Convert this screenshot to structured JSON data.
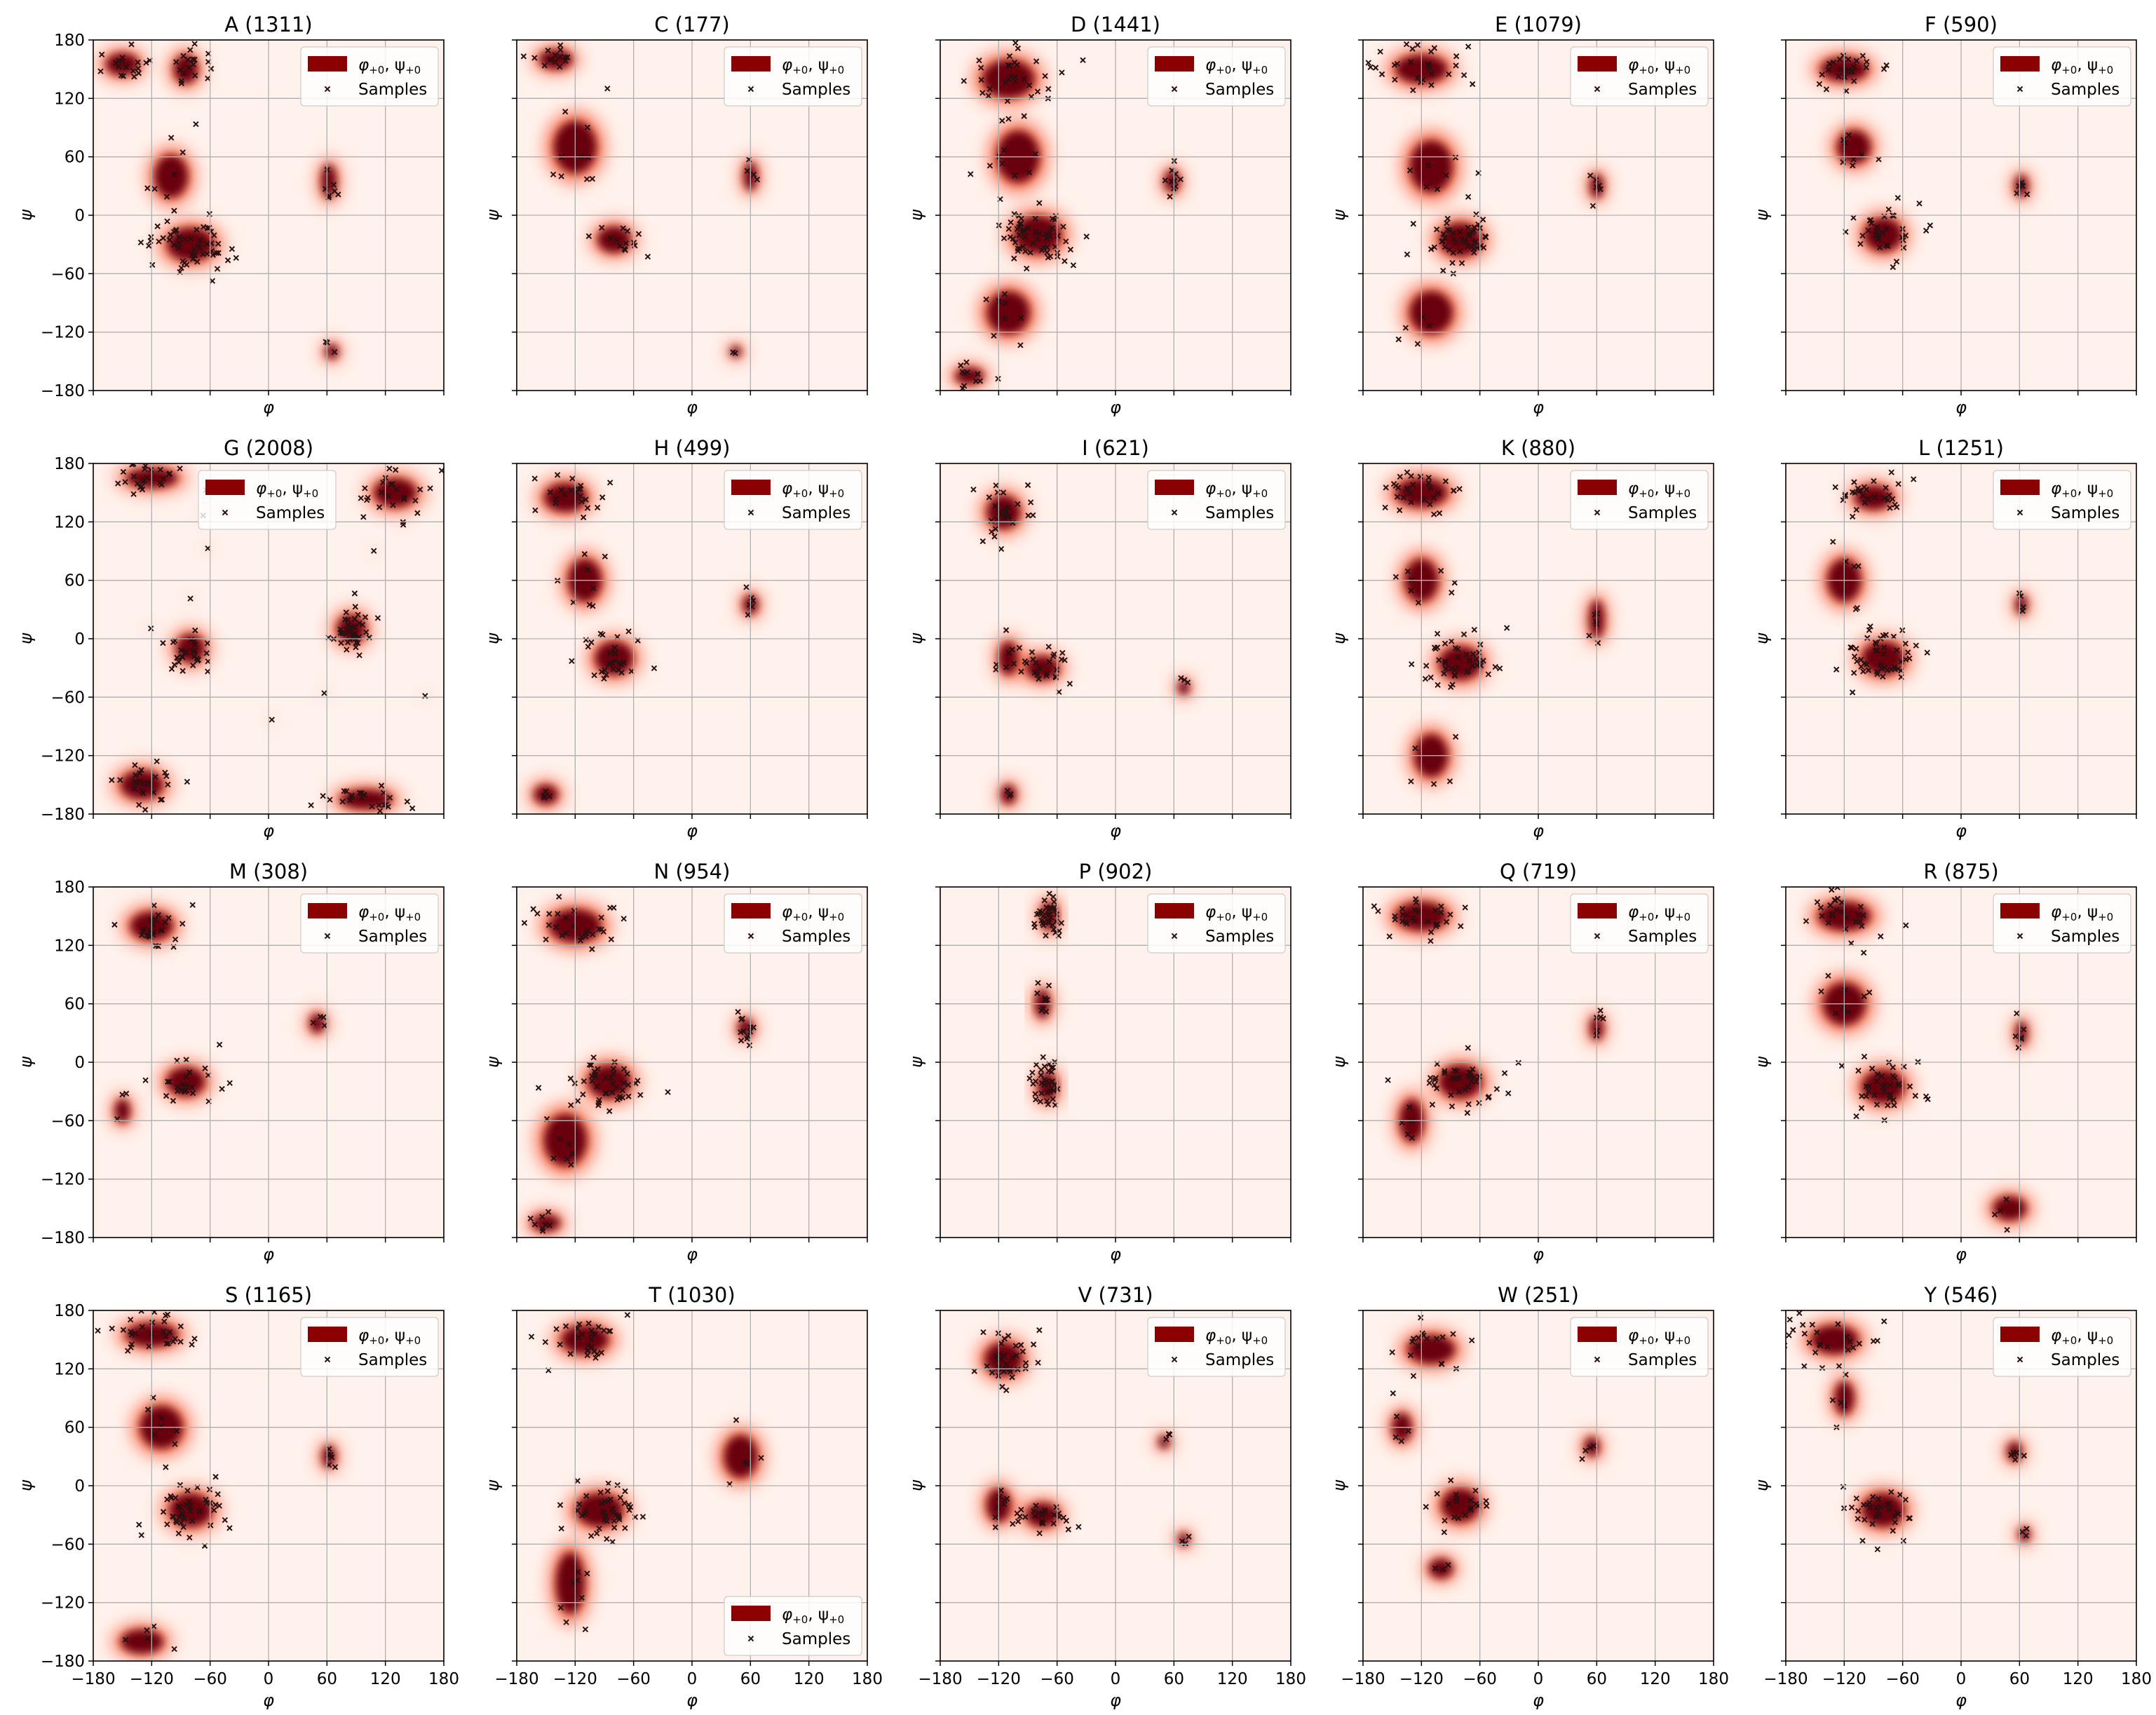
{
  "figure": {
    "legend_series_label": "φ+0, ψ+0",
    "legend_series_main": "φ",
    "legend_series_sub1": "+0",
    "legend_series_sep": ", ψ",
    "legend_series_sub2": "+0",
    "legend_samples_label": "Samples",
    "xlabel": "φ",
    "ylabel": "ψ",
    "colors": {
      "density_background": "#fff1ec",
      "density_mid": "#fb6a4a",
      "density_high": "#67000d",
      "legend_patch": "#8b0000",
      "sample_marker": "#2a1010",
      "grid": "#b0b0b0"
    }
  },
  "chart_data": [
    {
      "type": "heatmap",
      "title": "A (1311)",
      "xlim": [
        -180,
        180
      ],
      "ylim": [
        -180,
        180
      ],
      "ticks": [
        -180,
        -120,
        -60,
        0,
        60,
        120,
        180
      ],
      "grid": true,
      "legend": "upper right",
      "clusters": [
        {
          "x": -80,
          "y": -30,
          "w": 45,
          "h": 30,
          "n": 55
        },
        {
          "x": -150,
          "y": 155,
          "w": 30,
          "h": 18,
          "n": 18
        },
        {
          "x": -85,
          "y": 150,
          "w": 20,
          "h": 25,
          "n": 18
        },
        {
          "x": -100,
          "y": 40,
          "w": 30,
          "h": 40,
          "n": 8
        },
        {
          "x": 62,
          "y": 35,
          "w": 10,
          "h": 30,
          "n": 7
        },
        {
          "x": 65,
          "y": -140,
          "w": 8,
          "h": 10,
          "n": 3
        }
      ]
    },
    {
      "type": "heatmap",
      "title": "C (177)",
      "xlim": [
        -180,
        180
      ],
      "ylim": [
        -180,
        180
      ],
      "ticks": [
        -180,
        -120,
        -60,
        0,
        60,
        120,
        180
      ],
      "grid": true,
      "legend": "upper right",
      "clusters": [
        {
          "x": -80,
          "y": -25,
          "w": 30,
          "h": 22,
          "n": 14
        },
        {
          "x": -140,
          "y": 160,
          "w": 30,
          "h": 15,
          "n": 14
        },
        {
          "x": -120,
          "y": 70,
          "w": 40,
          "h": 50,
          "n": 10
        },
        {
          "x": 60,
          "y": 40,
          "w": 8,
          "h": 25,
          "n": 4
        },
        {
          "x": 45,
          "y": -140,
          "w": 6,
          "h": 6,
          "n": 2
        }
      ]
    },
    {
      "type": "heatmap",
      "title": "D (1441)",
      "xlim": [
        -180,
        180
      ],
      "ylim": [
        -180,
        180
      ],
      "ticks": [
        -180,
        -120,
        -60,
        0,
        60,
        120,
        180
      ],
      "grid": true,
      "legend": "upper right",
      "clusters": [
        {
          "x": -80,
          "y": -20,
          "w": 45,
          "h": 35,
          "n": 60
        },
        {
          "x": -110,
          "y": 140,
          "w": 50,
          "h": 35,
          "n": 30
        },
        {
          "x": -100,
          "y": 60,
          "w": 40,
          "h": 50,
          "n": 12
        },
        {
          "x": 58,
          "y": 35,
          "w": 10,
          "h": 18,
          "n": 10
        },
        {
          "x": -150,
          "y": -165,
          "w": 25,
          "h": 12,
          "n": 10
        },
        {
          "x": -110,
          "y": -100,
          "w": 40,
          "h": 40,
          "n": 8
        }
      ]
    },
    {
      "type": "heatmap",
      "title": "E (1079)",
      "xlim": [
        -180,
        180
      ],
      "ylim": [
        -180,
        180
      ],
      "ticks": [
        -180,
        -120,
        -60,
        0,
        60,
        120,
        180
      ],
      "grid": true,
      "legend": "upper right",
      "clusters": [
        {
          "x": -80,
          "y": -25,
          "w": 40,
          "h": 30,
          "n": 50
        },
        {
          "x": -120,
          "y": 150,
          "w": 50,
          "h": 25,
          "n": 30
        },
        {
          "x": -110,
          "y": 50,
          "w": 40,
          "h": 50,
          "n": 8
        },
        {
          "x": 60,
          "y": 30,
          "w": 8,
          "h": 20,
          "n": 6
        },
        {
          "x": -110,
          "y": -100,
          "w": 40,
          "h": 40,
          "n": 5
        }
      ]
    },
    {
      "type": "heatmap",
      "title": "F (590)",
      "xlim": [
        -180,
        180
      ],
      "ylim": [
        -180,
        180
      ],
      "ticks": [
        -180,
        -120,
        -60,
        0,
        60,
        120,
        180
      ],
      "grid": true,
      "legend": "upper right",
      "clusters": [
        {
          "x": -80,
          "y": -20,
          "w": 35,
          "h": 30,
          "n": 35
        },
        {
          "x": -120,
          "y": 150,
          "w": 45,
          "h": 20,
          "n": 25
        },
        {
          "x": -110,
          "y": 70,
          "w": 30,
          "h": 30,
          "n": 8
        },
        {
          "x": 62,
          "y": 30,
          "w": 8,
          "h": 18,
          "n": 6
        }
      ]
    },
    {
      "type": "heatmap",
      "title": "G (2008)",
      "xlim": [
        -180,
        180
      ],
      "ylim": [
        -180,
        180
      ],
      "ticks": [
        -180,
        -120,
        -60,
        0,
        60,
        120,
        180
      ],
      "grid": true,
      "legend": "upper left",
      "clusters": [
        {
          "x": 85,
          "y": 10,
          "w": 25,
          "h": 25,
          "n": 40
        },
        {
          "x": -80,
          "y": -10,
          "w": 25,
          "h": 25,
          "n": 30
        },
        {
          "x": -120,
          "y": 165,
          "w": 50,
          "h": 15,
          "n": 25
        },
        {
          "x": 100,
          "y": -165,
          "w": 50,
          "h": 15,
          "n": 25
        },
        {
          "x": -130,
          "y": -150,
          "w": 40,
          "h": 25,
          "n": 25
        },
        {
          "x": 130,
          "y": 150,
          "w": 40,
          "h": 25,
          "n": 25
        },
        {
          "x": 0,
          "y": 0,
          "w": 170,
          "h": 170,
          "n": 30
        }
      ]
    },
    {
      "type": "heatmap",
      "title": "H (499)",
      "xlim": [
        -180,
        180
      ],
      "ylim": [
        -180,
        180
      ],
      "ticks": [
        -180,
        -120,
        -60,
        0,
        60,
        120,
        180
      ],
      "grid": true,
      "legend": "upper right",
      "clusters": [
        {
          "x": -80,
          "y": -20,
          "w": 35,
          "h": 30,
          "n": 30
        },
        {
          "x": -130,
          "y": 145,
          "w": 40,
          "h": 25,
          "n": 22
        },
        {
          "x": -110,
          "y": 60,
          "w": 30,
          "h": 40,
          "n": 8
        },
        {
          "x": 60,
          "y": 35,
          "w": 10,
          "h": 15,
          "n": 6
        },
        {
          "x": -150,
          "y": -160,
          "w": 20,
          "h": 15,
          "n": 4
        }
      ]
    },
    {
      "type": "heatmap",
      "title": "I (621)",
      "xlim": [
        -180,
        180
      ],
      "ylim": [
        -180,
        180
      ],
      "ticks": [
        -180,
        -120,
        -60,
        0,
        60,
        120,
        180
      ],
      "grid": true,
      "legend": "upper right",
      "clusters": [
        {
          "x": -75,
          "y": -30,
          "w": 30,
          "h": 20,
          "n": 25
        },
        {
          "x": -115,
          "y": 130,
          "w": 30,
          "h": 30,
          "n": 30
        },
        {
          "x": -110,
          "y": -20,
          "w": 15,
          "h": 30,
          "n": 8
        },
        {
          "x": 70,
          "y": -50,
          "w": 6,
          "h": 10,
          "n": 3
        },
        {
          "x": -110,
          "y": -160,
          "w": 10,
          "h": 15,
          "n": 3
        }
      ]
    },
    {
      "type": "heatmap",
      "title": "K (880)",
      "xlim": [
        -180,
        180
      ],
      "ylim": [
        -180,
        180
      ],
      "ticks": [
        -180,
        -120,
        -60,
        0,
        60,
        120,
        180
      ],
      "grid": true,
      "legend": "upper right",
      "clusters": [
        {
          "x": -80,
          "y": -25,
          "w": 40,
          "h": 30,
          "n": 45
        },
        {
          "x": -120,
          "y": 150,
          "w": 50,
          "h": 25,
          "n": 30
        },
        {
          "x": -120,
          "y": 60,
          "w": 30,
          "h": 40,
          "n": 8
        },
        {
          "x": 60,
          "y": 20,
          "w": 10,
          "h": 35,
          "n": 6
        },
        {
          "x": -110,
          "y": -120,
          "w": 30,
          "h": 40,
          "n": 5
        }
      ]
    },
    {
      "type": "heatmap",
      "title": "L (1251)",
      "xlim": [
        -180,
        180
      ],
      "ylim": [
        -180,
        180
      ],
      "ticks": [
        -180,
        -120,
        -60,
        0,
        60,
        120,
        180
      ],
      "grid": true,
      "legend": "upper right",
      "clusters": [
        {
          "x": -80,
          "y": -20,
          "w": 40,
          "h": 30,
          "n": 50
        },
        {
          "x": -90,
          "y": 145,
          "w": 35,
          "h": 20,
          "n": 30
        },
        {
          "x": -120,
          "y": 60,
          "w": 30,
          "h": 40,
          "n": 6
        },
        {
          "x": 62,
          "y": 35,
          "w": 6,
          "h": 15,
          "n": 4
        }
      ]
    },
    {
      "type": "heatmap",
      "title": "M (308)",
      "xlim": [
        -180,
        180
      ],
      "ylim": [
        -180,
        180
      ],
      "ticks": [
        -180,
        -120,
        -60,
        0,
        60,
        120,
        180
      ],
      "grid": true,
      "legend": "upper right",
      "clusters": [
        {
          "x": -85,
          "y": -20,
          "w": 35,
          "h": 25,
          "n": 25
        },
        {
          "x": -120,
          "y": 140,
          "w": 40,
          "h": 25,
          "n": 25
        },
        {
          "x": 50,
          "y": 40,
          "w": 10,
          "h": 15,
          "n": 4
        },
        {
          "x": -150,
          "y": -50,
          "w": 10,
          "h": 20,
          "n": 3
        }
      ]
    },
    {
      "type": "heatmap",
      "title": "N (954)",
      "xlim": [
        -180,
        180
      ],
      "ylim": [
        -180,
        180
      ],
      "ticks": [
        -180,
        -120,
        -60,
        0,
        60,
        120,
        180
      ],
      "grid": true,
      "legend": "upper right",
      "clusters": [
        {
          "x": -85,
          "y": -20,
          "w": 40,
          "h": 30,
          "n": 45
        },
        {
          "x": -120,
          "y": 140,
          "w": 50,
          "h": 30,
          "n": 30
        },
        {
          "x": 55,
          "y": 35,
          "w": 10,
          "h": 15,
          "n": 12
        },
        {
          "x": -130,
          "y": -80,
          "w": 40,
          "h": 50,
          "n": 8
        },
        {
          "x": -150,
          "y": -165,
          "w": 25,
          "h": 12,
          "n": 8
        }
      ]
    },
    {
      "type": "heatmap",
      "title": "P (902)",
      "xlim": [
        -180,
        180
      ],
      "ylim": [
        -180,
        180
      ],
      "ticks": [
        -180,
        -120,
        -60,
        0,
        60,
        120,
        180
      ],
      "grid": true,
      "legend": "upper right",
      "clusters": [
        {
          "x": -68,
          "y": 150,
          "w": 12,
          "h": 25,
          "n": 35
        },
        {
          "x": -70,
          "y": -25,
          "w": 15,
          "h": 25,
          "n": 35
        },
        {
          "x": -75,
          "y": 60,
          "w": 10,
          "h": 25,
          "n": 10
        }
      ]
    },
    {
      "type": "heatmap",
      "title": "Q (719)",
      "xlim": [
        -180,
        180
      ],
      "ylim": [
        -180,
        180
      ],
      "ticks": [
        -180,
        -120,
        -60,
        0,
        60,
        120,
        180
      ],
      "grid": true,
      "legend": "upper right",
      "clusters": [
        {
          "x": -80,
          "y": -20,
          "w": 40,
          "h": 30,
          "n": 40
        },
        {
          "x": -120,
          "y": 150,
          "w": 50,
          "h": 25,
          "n": 30
        },
        {
          "x": 60,
          "y": 35,
          "w": 8,
          "h": 20,
          "n": 6
        },
        {
          "x": -130,
          "y": -60,
          "w": 20,
          "h": 40,
          "n": 6
        }
      ]
    },
    {
      "type": "heatmap",
      "title": "R (875)",
      "xlim": [
        -180,
        180
      ],
      "ylim": [
        -180,
        180
      ],
      "ticks": [
        -180,
        -120,
        -60,
        0,
        60,
        120,
        180
      ],
      "grid": true,
      "legend": "upper right",
      "clusters": [
        {
          "x": -80,
          "y": -25,
          "w": 40,
          "h": 30,
          "n": 40
        },
        {
          "x": -120,
          "y": 150,
          "w": 50,
          "h": 25,
          "n": 30
        },
        {
          "x": -120,
          "y": 60,
          "w": 40,
          "h": 40,
          "n": 8
        },
        {
          "x": 62,
          "y": 30,
          "w": 6,
          "h": 20,
          "n": 6
        },
        {
          "x": 50,
          "y": -150,
          "w": 30,
          "h": 20,
          "n": 4
        }
      ]
    },
    {
      "type": "heatmap",
      "title": "S (1165)",
      "xlim": [
        -180,
        180
      ],
      "ylim": [
        -180,
        180
      ],
      "ticks": [
        -180,
        -120,
        -60,
        0,
        60,
        120,
        180
      ],
      "grid": true,
      "legend": "upper right",
      "clusters": [
        {
          "x": -80,
          "y": -25,
          "w": 40,
          "h": 30,
          "n": 45
        },
        {
          "x": -120,
          "y": 155,
          "w": 50,
          "h": 20,
          "n": 30
        },
        {
          "x": -110,
          "y": 60,
          "w": 40,
          "h": 40,
          "n": 8
        },
        {
          "x": 62,
          "y": 30,
          "w": 8,
          "h": 18,
          "n": 6
        },
        {
          "x": -130,
          "y": -160,
          "w": 40,
          "h": 20,
          "n": 5
        }
      ]
    },
    {
      "type": "heatmap",
      "title": "T (1030)",
      "xlim": [
        -180,
        180
      ],
      "ylim": [
        -180,
        180
      ],
      "ticks": [
        -180,
        -120,
        -60,
        0,
        60,
        120,
        180
      ],
      "grid": true,
      "legend": "lower right",
      "clusters": [
        {
          "x": -95,
          "y": -25,
          "w": 45,
          "h": 30,
          "n": 45
        },
        {
          "x": -110,
          "y": 150,
          "w": 45,
          "h": 25,
          "n": 30
        },
        {
          "x": -125,
          "y": -100,
          "w": 25,
          "h": 60,
          "n": 8
        },
        {
          "x": 50,
          "y": 30,
          "w": 30,
          "h": 40,
          "n": 5
        }
      ]
    },
    {
      "type": "heatmap",
      "title": "V (731)",
      "xlim": [
        -180,
        180
      ],
      "ylim": [
        -180,
        180
      ],
      "ticks": [
        -180,
        -120,
        -60,
        0,
        60,
        120,
        180
      ],
      "grid": true,
      "legend": "upper right",
      "clusters": [
        {
          "x": -75,
          "y": -30,
          "w": 30,
          "h": 20,
          "n": 25
        },
        {
          "x": -115,
          "y": 130,
          "w": 35,
          "h": 30,
          "n": 35
        },
        {
          "x": -120,
          "y": -20,
          "w": 20,
          "h": 30,
          "n": 10
        },
        {
          "x": 50,
          "y": 45,
          "w": 6,
          "h": 8,
          "n": 3
        },
        {
          "x": 70,
          "y": -55,
          "w": 6,
          "h": 8,
          "n": 3
        }
      ]
    },
    {
      "type": "heatmap",
      "title": "W (251)",
      "xlim": [
        -180,
        180
      ],
      "ylim": [
        -180,
        180
      ],
      "ticks": [
        -180,
        -120,
        -60,
        0,
        60,
        120,
        180
      ],
      "grid": true,
      "legend": "upper right",
      "clusters": [
        {
          "x": -80,
          "y": -20,
          "w": 35,
          "h": 30,
          "n": 20
        },
        {
          "x": -110,
          "y": 140,
          "w": 45,
          "h": 25,
          "n": 18
        },
        {
          "x": -140,
          "y": 60,
          "w": 15,
          "h": 25,
          "n": 5
        },
        {
          "x": 55,
          "y": 40,
          "w": 10,
          "h": 15,
          "n": 4
        },
        {
          "x": -100,
          "y": -85,
          "w": 20,
          "h": 15,
          "n": 3
        }
      ]
    },
    {
      "type": "heatmap",
      "title": "Y (546)",
      "xlim": [
        -180,
        180
      ],
      "ylim": [
        -180,
        180
      ],
      "ticks": [
        -180,
        -120,
        -60,
        0,
        60,
        120,
        180
      ],
      "grid": true,
      "legend": "upper right",
      "clusters": [
        {
          "x": -80,
          "y": -25,
          "w": 40,
          "h": 30,
          "n": 35
        },
        {
          "x": -130,
          "y": 150,
          "w": 45,
          "h": 25,
          "n": 25
        },
        {
          "x": -120,
          "y": 90,
          "w": 15,
          "h": 30,
          "n": 6
        },
        {
          "x": 55,
          "y": 35,
          "w": 10,
          "h": 15,
          "n": 6
        },
        {
          "x": 65,
          "y": -50,
          "w": 6,
          "h": 10,
          "n": 3
        }
      ]
    }
  ]
}
